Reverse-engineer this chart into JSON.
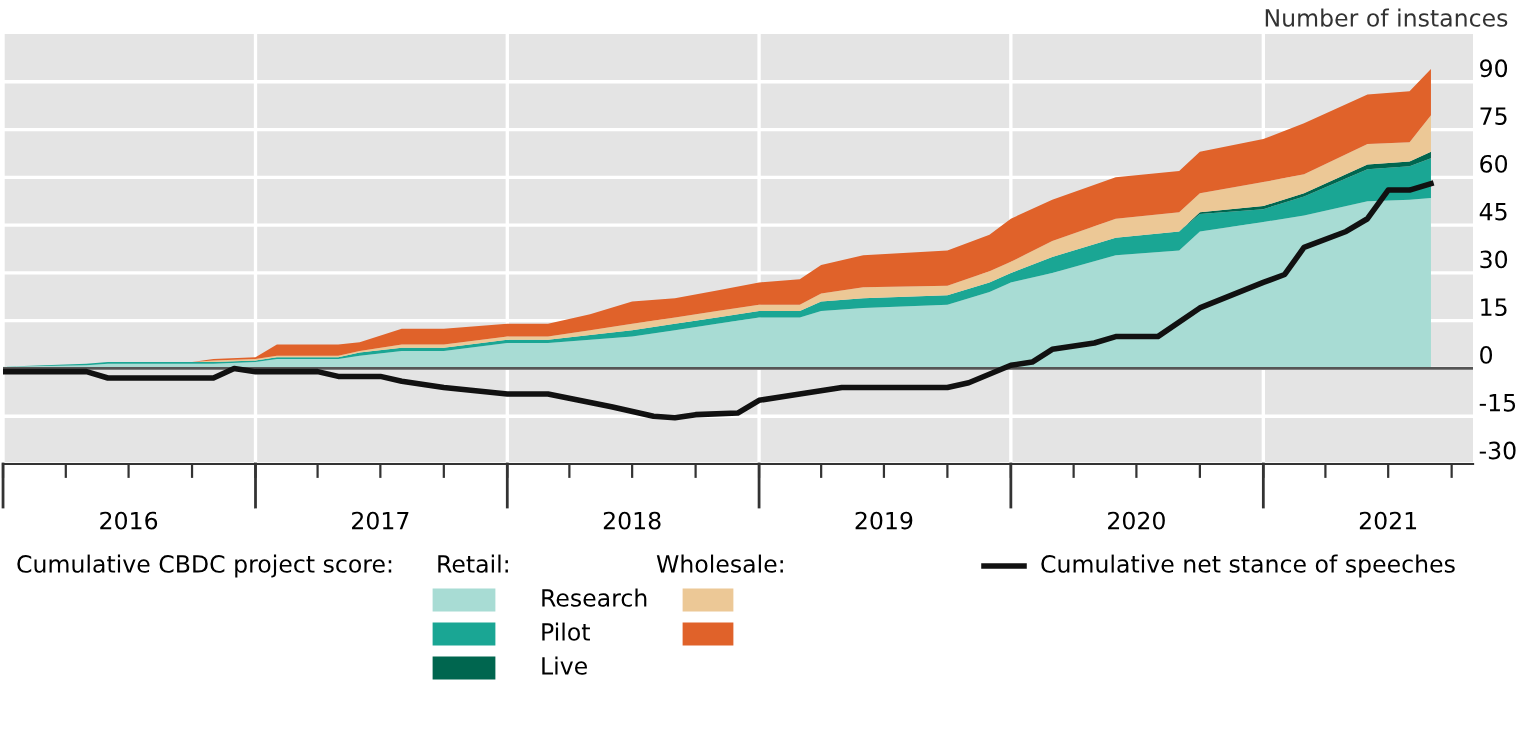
{
  "chart_data": {
    "type": "area",
    "stacked": true,
    "ylabel": "Number of instances",
    "annotations": [
      "Cumulative CBDC project score:",
      "Retail:",
      "Wholesale:"
    ],
    "x": [
      "2016-01",
      "2016-05",
      "2016-06",
      "2016-10",
      "2016-11",
      "2017-01",
      "2017-02",
      "2017-05",
      "2017-06",
      "2017-08",
      "2017-10",
      "2018-01",
      "2018-03",
      "2018-05",
      "2018-07",
      "2018-09",
      "2018-11",
      "2019-01",
      "2019-03",
      "2019-04",
      "2019-06",
      "2019-10",
      "2019-12",
      "2020-01",
      "2020-03",
      "2020-06",
      "2020-09",
      "2020-10",
      "2021-01",
      "2021-03",
      "2021-06",
      "2021-08",
      "2021-09"
    ],
    "series": [
      {
        "name": "Research",
        "color": "#a8dcd4",
        "values": [
          0.5,
          1,
          1.5,
          1.5,
          1.5,
          2,
          3,
          3,
          4,
          5.5,
          5.5,
          8,
          8,
          9,
          10,
          12,
          14,
          16,
          16,
          18,
          19,
          20,
          24,
          27,
          30,
          35.5,
          37,
          43,
          46,
          48,
          52.5,
          53,
          53.5
        ]
      },
      {
        "name": "Pilot",
        "color": "#1aa694",
        "values": [
          0,
          0.5,
          0.5,
          0.5,
          0.5,
          0.5,
          0.5,
          0.5,
          1,
          1,
          1,
          1,
          1,
          1.5,
          2,
          2,
          2,
          2,
          2,
          3,
          3,
          3,
          3,
          3,
          5,
          5.5,
          6,
          5.5,
          4,
          6,
          10,
          10.5,
          12.5
        ]
      },
      {
        "name": "Live",
        "color": "#00664f",
        "values": [
          0,
          0,
          0,
          0,
          0,
          0,
          0,
          0,
          0,
          0,
          0,
          0,
          0,
          0,
          0,
          0,
          0,
          0,
          0,
          0,
          0,
          0,
          0,
          0,
          0,
          0,
          0,
          0.5,
          1,
          1,
          1.5,
          1.5,
          2
        ]
      },
      {
        "color": "#ecc896",
        "values": [
          0,
          0,
          0,
          0,
          0.5,
          0.5,
          0.5,
          0.5,
          0.5,
          1,
          1,
          1,
          1,
          1.5,
          2,
          2,
          2,
          2,
          2,
          2.5,
          3.5,
          3,
          3.5,
          3.5,
          5,
          6,
          6,
          6,
          7.5,
          6,
          6.5,
          6,
          11.5
        ]
      },
      {
        "color": "#e0622a",
        "values": [
          0,
          0,
          0,
          0,
          0.5,
          0.5,
          3.5,
          3.5,
          2.7,
          5,
          5,
          4,
          4,
          5,
          7,
          6,
          6.5,
          7,
          8,
          9,
          10,
          11,
          11.5,
          13.5,
          13,
          13,
          13,
          13,
          13.5,
          16,
          15.5,
          16,
          14.5
        ]
      },
      {
        "name": "Cumulative net stance of speeches",
        "type": "line",
        "color": "#111111",
        "x": [
          "2016-01",
          "2016-05",
          "2016-06",
          "2016-11",
          "2016-12",
          "2017-01",
          "2017-04",
          "2017-05",
          "2017-07",
          "2017-08",
          "2017-10",
          "2018-01",
          "2018-03",
          "2018-06",
          "2018-08",
          "2018-09",
          "2018-10",
          "2018-12",
          "2019-01",
          "2019-03",
          "2019-05",
          "2019-10",
          "2019-11",
          "2020-01",
          "2020-02",
          "2020-03",
          "2020-05",
          "2020-06",
          "2020-08",
          "2020-10",
          "2021-01",
          "2021-02",
          "2021-03",
          "2021-05",
          "2021-06",
          "2021-07",
          "2021-08",
          "2021-09"
        ],
        "values": [
          -1,
          -1,
          -3,
          -3,
          0,
          -1,
          -1,
          -2.5,
          -2.5,
          -4,
          -6,
          -8,
          -8,
          -12,
          -15,
          -15.5,
          -14.5,
          -14,
          -10,
          -8,
          -6,
          -6,
          -4.5,
          1,
          2,
          6,
          8,
          10,
          10,
          19,
          27,
          29.5,
          38,
          43,
          47,
          56,
          56,
          58
        ]
      }
    ],
    "xlim": [
      "2016-01",
      "2021-11"
    ],
    "xticks": [
      {
        "value": "2016-01",
        "label": null
      },
      {
        "value": "2016-04",
        "label": null
      },
      {
        "value": "2016-07",
        "label": "2016"
      },
      {
        "value": "2016-10",
        "label": null
      },
      {
        "value": "2017-01",
        "label": null
      },
      {
        "value": "2017-04",
        "label": null
      },
      {
        "value": "2017-07",
        "label": "2017"
      },
      {
        "value": "2017-10",
        "label": null
      },
      {
        "value": "2018-01",
        "label": null
      },
      {
        "value": "2018-04",
        "label": null
      },
      {
        "value": "2018-07",
        "label": "2018"
      },
      {
        "value": "2018-10",
        "label": null
      },
      {
        "value": "2019-01",
        "label": null
      },
      {
        "value": "2019-04",
        "label": null
      },
      {
        "value": "2019-07",
        "label": "2019"
      },
      {
        "value": "2019-10",
        "label": null
      },
      {
        "value": "2020-01",
        "label": null
      },
      {
        "value": "2020-04",
        "label": null
      },
      {
        "value": "2020-07",
        "label": "2020"
      },
      {
        "value": "2020-10",
        "label": null
      },
      {
        "value": "2021-01",
        "label": null
      },
      {
        "value": "2021-04",
        "label": null
      },
      {
        "value": "2021-07",
        "label": "2021"
      },
      {
        "value": "2021-10",
        "label": null
      }
    ],
    "ylim": [
      -30,
      105
    ],
    "yticks": [
      -30,
      -15,
      0,
      15,
      30,
      45,
      60,
      75,
      90
    ],
    "ref_lines": [
      {
        "axis": "y",
        "value": 0,
        "color": "#555555"
      }
    ],
    "grid": true,
    "legend": "bottom"
  }
}
